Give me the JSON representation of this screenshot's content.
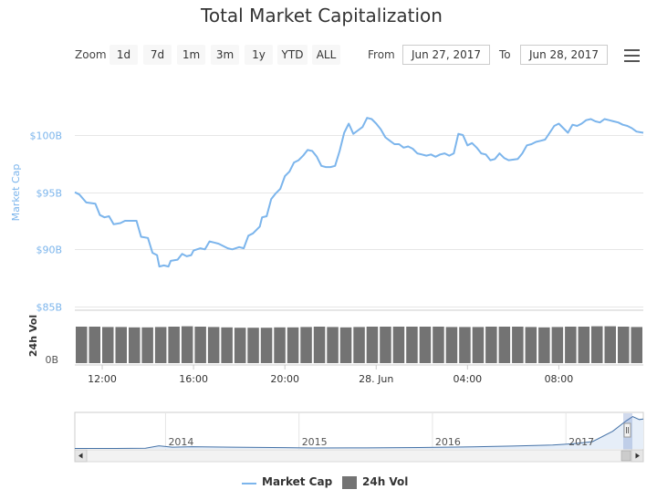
{
  "chart_data": {
    "type": "line",
    "title": "Total Market Capitalization",
    "ylabel_top": "Market Cap",
    "ylabel_bottom": "24h Vol",
    "y_ticks": [
      {
        "value": 85,
        "label": "$85B"
      },
      {
        "value": 90,
        "label": "$90B"
      },
      {
        "value": 95,
        "label": "$95B"
      },
      {
        "value": 100,
        "label": "$100B"
      }
    ],
    "ylim": [
      85,
      106
    ],
    "vol_tick": "0B",
    "x_ticks": [
      {
        "hour": 12,
        "label": "12:00"
      },
      {
        "hour": 16,
        "label": "16:00"
      },
      {
        "hour": 20,
        "label": "20:00"
      },
      {
        "hour": 24,
        "label": "28. Jun"
      },
      {
        "hour": 28,
        "label": "04:00"
      },
      {
        "hour": 32,
        "label": "08:00"
      }
    ],
    "xlim": [
      10.8,
      35.7
    ],
    "series": [
      {
        "name": "Market Cap",
        "color": "#7cb5ec",
        "points": [
          [
            10.8,
            95.0
          ],
          [
            11.0,
            94.8
          ],
          [
            11.3,
            94.1
          ],
          [
            11.7,
            94.0
          ],
          [
            11.9,
            93.0
          ],
          [
            12.1,
            92.8
          ],
          [
            12.3,
            92.9
          ],
          [
            12.5,
            92.2
          ],
          [
            12.8,
            92.3
          ],
          [
            13.0,
            92.5
          ],
          [
            13.5,
            92.5
          ],
          [
            13.7,
            91.1
          ],
          [
            14.0,
            91.0
          ],
          [
            14.2,
            89.7
          ],
          [
            14.4,
            89.5
          ],
          [
            14.5,
            88.5
          ],
          [
            14.7,
            88.6
          ],
          [
            14.9,
            88.5
          ],
          [
            15.0,
            89.0
          ],
          [
            15.3,
            89.1
          ],
          [
            15.5,
            89.6
          ],
          [
            15.7,
            89.4
          ],
          [
            15.9,
            89.5
          ],
          [
            16.0,
            89.9
          ],
          [
            16.3,
            90.1
          ],
          [
            16.5,
            90.0
          ],
          [
            16.7,
            90.7
          ],
          [
            16.9,
            90.6
          ],
          [
            17.1,
            90.5
          ],
          [
            17.3,
            90.3
          ],
          [
            17.5,
            90.1
          ],
          [
            17.7,
            90.0
          ],
          [
            18.0,
            90.2
          ],
          [
            18.2,
            90.1
          ],
          [
            18.4,
            91.2
          ],
          [
            18.6,
            91.4
          ],
          [
            18.9,
            92.0
          ],
          [
            19.0,
            92.8
          ],
          [
            19.2,
            92.9
          ],
          [
            19.4,
            94.4
          ],
          [
            19.6,
            94.9
          ],
          [
            19.8,
            95.3
          ],
          [
            20.0,
            96.4
          ],
          [
            20.2,
            96.8
          ],
          [
            20.4,
            97.6
          ],
          [
            20.6,
            97.8
          ],
          [
            20.8,
            98.2
          ],
          [
            21.0,
            98.7
          ],
          [
            21.2,
            98.6
          ],
          [
            21.4,
            98.1
          ],
          [
            21.6,
            97.3
          ],
          [
            21.8,
            97.2
          ],
          [
            22.0,
            97.2
          ],
          [
            22.2,
            97.3
          ],
          [
            22.4,
            98.6
          ],
          [
            22.6,
            100.2
          ],
          [
            22.8,
            101.0
          ],
          [
            23.0,
            100.1
          ],
          [
            23.2,
            100.4
          ],
          [
            23.4,
            100.7
          ],
          [
            23.6,
            101.5
          ],
          [
            23.8,
            101.4
          ],
          [
            24.0,
            101.0
          ],
          [
            24.2,
            100.5
          ],
          [
            24.4,
            99.8
          ],
          [
            24.6,
            99.5
          ],
          [
            24.8,
            99.2
          ],
          [
            25.0,
            99.2
          ],
          [
            25.2,
            98.9
          ],
          [
            25.4,
            99.0
          ],
          [
            25.6,
            98.8
          ],
          [
            25.8,
            98.4
          ],
          [
            26.0,
            98.3
          ],
          [
            26.2,
            98.2
          ],
          [
            26.4,
            98.3
          ],
          [
            26.6,
            98.1
          ],
          [
            26.8,
            98.3
          ],
          [
            27.0,
            98.4
          ],
          [
            27.2,
            98.2
          ],
          [
            27.4,
            98.4
          ],
          [
            27.6,
            100.1
          ],
          [
            27.8,
            100.0
          ],
          [
            28.0,
            99.1
          ],
          [
            28.2,
            99.3
          ],
          [
            28.4,
            98.9
          ],
          [
            28.6,
            98.4
          ],
          [
            28.8,
            98.3
          ],
          [
            29.0,
            97.8
          ],
          [
            29.2,
            97.9
          ],
          [
            29.4,
            98.4
          ],
          [
            29.6,
            98.0
          ],
          [
            29.8,
            97.8
          ],
          [
            30.2,
            97.9
          ],
          [
            30.4,
            98.4
          ],
          [
            30.6,
            99.1
          ],
          [
            30.8,
            99.2
          ],
          [
            31.0,
            99.4
          ],
          [
            31.2,
            99.5
          ],
          [
            31.4,
            99.6
          ],
          [
            31.6,
            100.2
          ],
          [
            31.8,
            100.8
          ],
          [
            32.0,
            101.0
          ],
          [
            32.2,
            100.6
          ],
          [
            32.4,
            100.2
          ],
          [
            32.6,
            100.9
          ],
          [
            32.8,
            100.8
          ],
          [
            33.0,
            101.0
          ],
          [
            33.2,
            101.3
          ],
          [
            33.4,
            101.4
          ],
          [
            33.6,
            101.2
          ],
          [
            33.8,
            101.1
          ],
          [
            34.0,
            101.4
          ],
          [
            34.2,
            101.3
          ],
          [
            34.4,
            101.2
          ],
          [
            34.6,
            101.1
          ],
          [
            34.8,
            100.9
          ],
          [
            35.0,
            100.8
          ],
          [
            35.2,
            100.6
          ],
          [
            35.4,
            100.3
          ],
          [
            35.7,
            100.2
          ]
        ]
      },
      {
        "name": "24h Vol",
        "color": "#737373",
        "bars": [
          1.0,
          1.0,
          0.99,
          0.99,
          0.98,
          0.98,
          0.99,
          1.0,
          1.01,
          1.0,
          0.99,
          0.98,
          0.97,
          0.97,
          0.97,
          0.98,
          0.98,
          0.99,
          1.0,
          0.99,
          0.98,
          0.99,
          1.0,
          1.0,
          1.0,
          1.0,
          1.0,
          1.0,
          0.99,
          0.99,
          0.99,
          1.0,
          1.0,
          1.0,
          0.99,
          0.98,
          0.99,
          1.0,
          1.0,
          1.01,
          1.01,
          1.0,
          0.99
        ]
      }
    ],
    "legend_position": "bottom-center",
    "grid": true
  },
  "navigator": {
    "year_labels": [
      {
        "year": 2014.0,
        "label": "2014"
      },
      {
        "year": 2015.0,
        "label": "2015"
      },
      {
        "year": 2016.0,
        "label": "2016"
      },
      {
        "year": 2017.0,
        "label": "2017"
      }
    ],
    "xlim": [
      2013.32,
      2017.58
    ],
    "cap_points": [
      [
        2013.32,
        1.6
      ],
      [
        2013.6,
        1.7
      ],
      [
        2013.85,
        2.5
      ],
      [
        2013.95,
        10.5
      ],
      [
        2014.05,
        6.0
      ],
      [
        2014.2,
        7.5
      ],
      [
        2014.5,
        6.0
      ],
      [
        2014.9,
        4.5
      ],
      [
        2015.1,
        3.2
      ],
      [
        2015.5,
        3.5
      ],
      [
        2015.9,
        4.8
      ],
      [
        2016.3,
        6.8
      ],
      [
        2016.6,
        9.5
      ],
      [
        2016.9,
        13.5
      ],
      [
        2017.05,
        17.5
      ],
      [
        2017.2,
        25
      ],
      [
        2017.35,
        60
      ],
      [
        2017.45,
        95
      ],
      [
        2017.5,
        110
      ],
      [
        2017.55,
        100
      ],
      [
        2017.58,
        102
      ]
    ],
    "cap_max": 115
  },
  "range_selector": {
    "zoom_label": "Zoom",
    "buttons": [
      "1d",
      "7d",
      "1m",
      "3m",
      "1y",
      "YTD",
      "ALL"
    ],
    "from_label": "From",
    "to_label": "To",
    "from_value": "Jun 27, 2017",
    "to_value": "Jun 28, 2017"
  },
  "legend": {
    "cap_label": "Market Cap",
    "vol_label": "24h Vol"
  }
}
